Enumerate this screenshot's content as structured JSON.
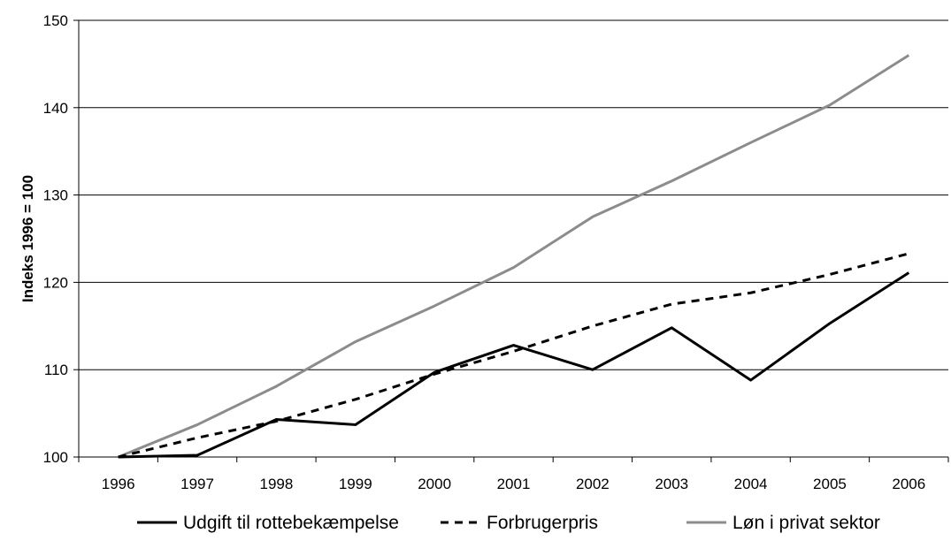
{
  "chart_data": {
    "type": "line",
    "title": "",
    "xlabel": "",
    "ylabel": "Indeks 1996 = 100",
    "categories": [
      "1996",
      "1997",
      "1998",
      "1999",
      "2000",
      "2001",
      "2002",
      "2003",
      "2004",
      "2005",
      "2006"
    ],
    "ylim": [
      100,
      150
    ],
    "yticks": [
      100,
      110,
      120,
      130,
      140,
      150
    ],
    "grid": "horizontal",
    "legend_position": "bottom",
    "series": [
      {
        "name": "Udgift til rottebekæmpelse",
        "values": [
          100.0,
          100.2,
          104.3,
          103.7,
          109.7,
          112.8,
          110.0,
          114.8,
          108.8,
          115.3,
          121.1
        ],
        "color": "#000000",
        "style": "solid"
      },
      {
        "name": "Forbrugerpris",
        "values": [
          100.0,
          102.2,
          104.1,
          106.6,
          109.5,
          112.1,
          115.0,
          117.5,
          118.8,
          120.9,
          123.3
        ],
        "color": "#000000",
        "style": "dashed"
      },
      {
        "name": "Løn i privat sektor",
        "values": [
          100.0,
          103.7,
          108.1,
          113.2,
          117.3,
          121.7,
          127.5,
          131.6,
          136.0,
          140.3,
          146.0
        ],
        "color": "#8c8c8c",
        "style": "solid"
      }
    ]
  }
}
